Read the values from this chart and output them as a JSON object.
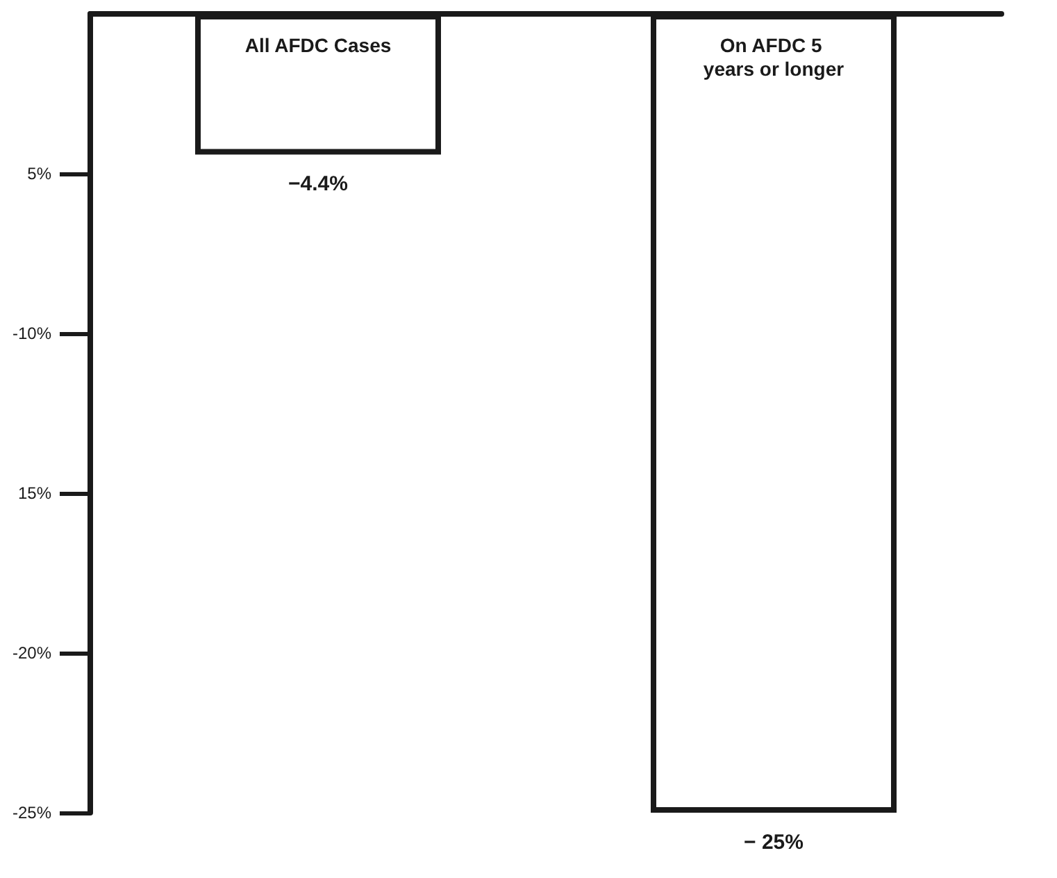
{
  "chart_data": {
    "type": "bar",
    "categories": [
      "All AFDC Cases",
      "On AFDC 5 years or longer"
    ],
    "values": [
      -4.4,
      -25
    ],
    "value_labels": [
      "−4.4%",
      "− 25%"
    ],
    "color": "#ffffff",
    "ylim": [
      -25,
      0
    ],
    "yticks": [
      {
        "value": -5,
        "label": "5%"
      },
      {
        "value": -10,
        "label": "-10%"
      },
      {
        "value": -15,
        "label": "15%"
      },
      {
        "value": -20,
        "label": "-20%"
      },
      {
        "value": -25,
        "label": "-25%"
      }
    ],
    "grid": false
  }
}
